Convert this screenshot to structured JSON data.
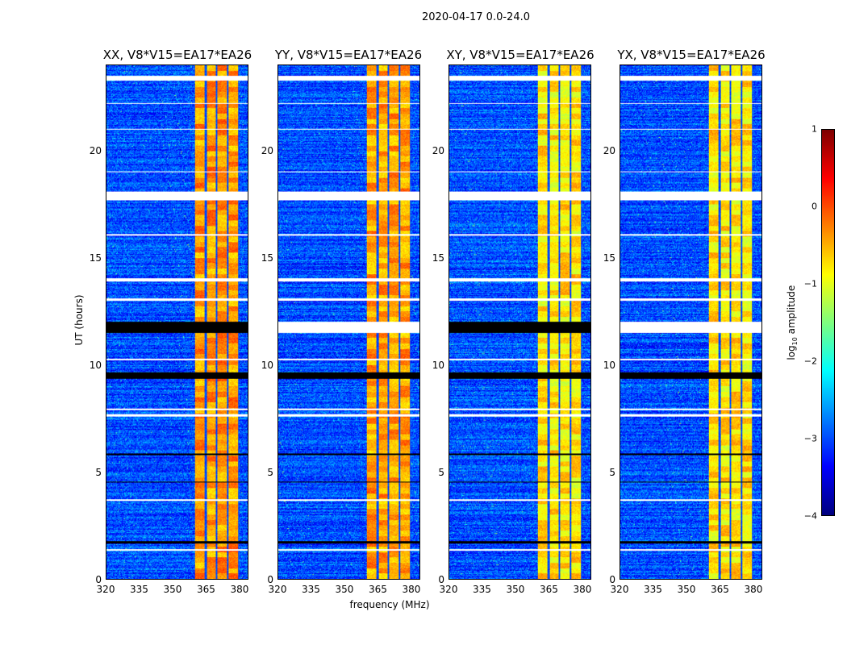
{
  "chart_data": {
    "type": "heatmap",
    "title": "2020-04-17 0.0-24.0",
    "xlabel": "frequency (MHz)",
    "ylabel": "UT (hours)",
    "xlim": [
      320,
      384
    ],
    "ylim": [
      0,
      24
    ],
    "xticks": [
      "320",
      "335",
      "350",
      "365",
      "380"
    ],
    "yticks": [
      "0",
      "5",
      "10",
      "15",
      "20"
    ],
    "panels": [
      {
        "title": "XX, V8*V15=EA17*EA26",
        "band_level": -0.5
      },
      {
        "title": "YY, V8*V15=EA17*EA26",
        "band_level": -0.55
      },
      {
        "title": "XY, V8*V15=EA17*EA26",
        "band_level": -0.9
      },
      {
        "title": "YX, V8*V15=EA17*EA26",
        "band_level": -0.9
      }
    ],
    "bright_band_mhz": [
      360,
      380
    ],
    "subband_dividers_mhz": [
      365,
      370,
      375,
      380
    ],
    "background_level": -3,
    "flagged_white_ut": [
      [
        23.3,
        23.5
      ],
      [
        17.7,
        18.1
      ],
      [
        13.9,
        14.05
      ],
      [
        13.0,
        13.1
      ],
      [
        16.05,
        16.12
      ],
      [
        10.2,
        10.3
      ],
      [
        7.6,
        7.7
      ],
      [
        7.9,
        7.95
      ],
      [
        3.65,
        3.7
      ],
      [
        1.3,
        1.4
      ],
      [
        22.2,
        22.25
      ],
      [
        19.0,
        19.05
      ],
      [
        21.0,
        21.05
      ]
    ],
    "flagged_black_ut": [
      [
        11.5,
        12.0
      ],
      [
        9.35,
        9.65
      ],
      [
        1.65,
        1.75
      ],
      [
        5.8,
        5.85
      ],
      [
        4.5,
        4.55
      ]
    ],
    "colorbar": {
      "label": "log10 amplitude",
      "label_main": "log",
      "label_sub": "10",
      "label_tail": " amplitude",
      "range": [
        -4,
        1
      ],
      "ticks": [
        "1",
        "0",
        "−1",
        "−2",
        "−3",
        "−4"
      ],
      "colormap": "jet"
    }
  }
}
